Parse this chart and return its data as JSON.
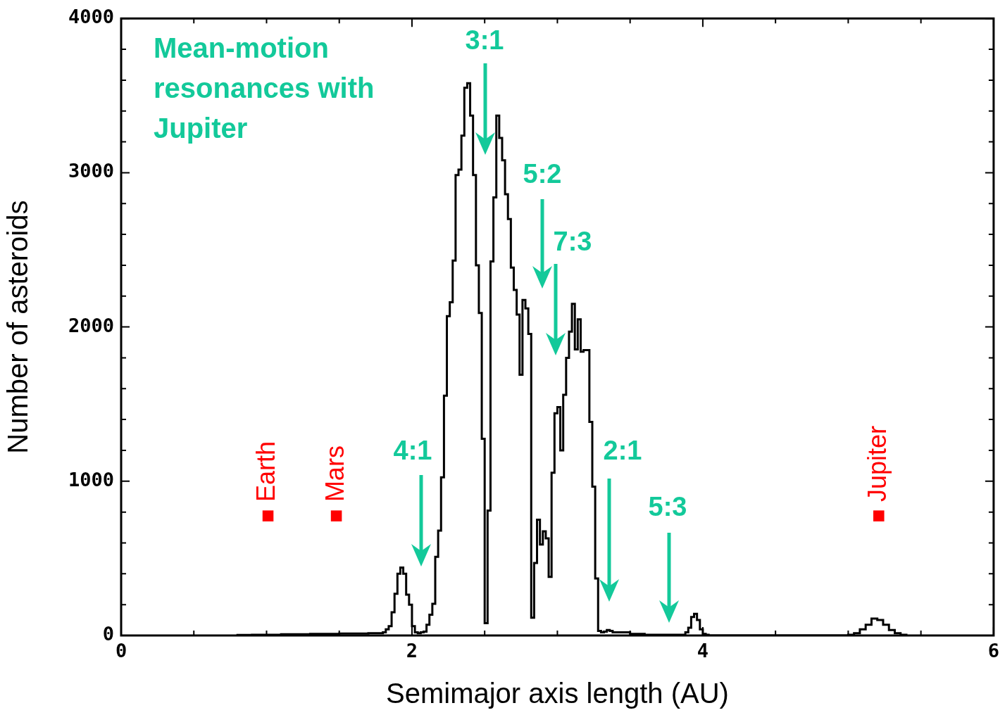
{
  "chart_data": {
    "type": "histogram",
    "xlabel": "Semimajor axis length (AU)",
    "ylabel": "Number of asteroids",
    "bins": [
      0.8,
      0.9,
      1.0,
      1.1,
      1.2,
      1.3,
      1.4,
      1.5,
      1.6,
      1.7,
      1.8,
      1.82,
      1.84,
      1.86,
      1.88,
      1.9,
      1.92,
      1.94,
      1.96,
      1.98,
      2.0,
      2.02,
      2.04,
      2.06,
      2.08,
      2.1,
      2.12,
      2.14,
      2.16,
      2.18,
      2.2,
      2.22,
      2.24,
      2.26,
      2.28,
      2.3,
      2.32,
      2.34,
      2.36,
      2.38,
      2.4,
      2.42,
      2.44,
      2.46,
      2.48,
      2.5,
      2.52,
      2.54,
      2.56,
      2.58,
      2.6,
      2.62,
      2.64,
      2.66,
      2.68,
      2.7,
      2.72,
      2.74,
      2.76,
      2.78,
      2.8,
      2.82,
      2.84,
      2.86,
      2.88,
      2.9,
      2.92,
      2.94,
      2.96,
      2.98,
      3.0,
      3.02,
      3.04,
      3.06,
      3.08,
      3.1,
      3.12,
      3.14,
      3.16,
      3.18,
      3.2,
      3.22,
      3.24,
      3.26,
      3.28,
      3.3,
      3.32,
      3.34,
      3.36,
      3.38,
      3.4,
      3.5,
      3.6,
      3.7,
      3.86,
      3.88,
      3.9,
      3.92,
      3.94,
      3.96,
      3.98,
      4.0,
      4.02,
      4.04,
      4.06,
      5.0,
      5.04,
      5.08,
      5.12,
      5.16,
      5.2,
      5.24,
      5.28,
      5.32,
      5.36,
      5.4
    ],
    "series": [
      {
        "color": "#000000",
        "values": [
          3,
          5,
          5,
          8,
          8,
          10,
          10,
          12,
          12,
          15,
          20,
          40,
          60,
          150,
          270,
          400,
          440,
          400,
          265,
          200,
          60,
          20,
          15,
          20,
          25,
          70,
          135,
          205,
          510,
          680,
          1025,
          1555,
          2070,
          2160,
          2430,
          2985,
          3020,
          3240,
          3550,
          3580,
          3370,
          2985,
          2400,
          2090,
          1275,
          80,
          810,
          2425,
          2840,
          3370,
          3225,
          3080,
          2860,
          2700,
          2385,
          2240,
          2080,
          1690,
          2175,
          2120,
          1955,
          115,
          470,
          750,
          590,
          675,
          630,
          380,
          1055,
          1440,
          1480,
          1200,
          1560,
          1800,
          1970,
          2150,
          1855,
          2050,
          1840,
          1850,
          1850,
          1385,
          965,
          370,
          30,
          20,
          25,
          35,
          30,
          20,
          20,
          10,
          5,
          5,
          5,
          20,
          50,
          120,
          140,
          100,
          40,
          10,
          5,
          0,
          0,
          5,
          15,
          40,
          70,
          110,
          100,
          70,
          35,
          15,
          5
        ]
      },
      {
        "type": "scatter",
        "color": "#ff0000",
        "marker": "square",
        "x": [
          1.01,
          1.48,
          5.21
        ],
        "values": [
          775,
          775,
          775
        ],
        "value_labels": [
          "Earth",
          "Mars",
          "Jupiter"
        ]
      }
    ],
    "xlim": [
      0,
      6
    ],
    "xticks": [
      0,
      {
        "value": 0.5,
        "label": null
      },
      {
        "value": 1,
        "label": null
      },
      {
        "value": 1.5,
        "label": null
      },
      2,
      {
        "value": 2.5,
        "label": null
      },
      {
        "value": 3,
        "label": null
      },
      {
        "value": 3.5,
        "label": null
      },
      4,
      {
        "value": 4.5,
        "label": null
      },
      {
        "value": 5,
        "label": null
      },
      {
        "value": 5.5,
        "label": null
      },
      6
    ],
    "ylim": [
      0,
      4000
    ],
    "yticks": [
      0,
      {
        "value": 200,
        "label": null
      },
      {
        "value": 400,
        "label": null
      },
      {
        "value": 600,
        "label": null
      },
      {
        "value": 800,
        "label": null
      },
      1000,
      {
        "value": 1200,
        "label": null
      },
      {
        "value": 1400,
        "label": null
      },
      {
        "value": 1600,
        "label": null
      },
      {
        "value": 1800,
        "label": null
      },
      2000,
      {
        "value": 2200,
        "label": null
      },
      {
        "value": 2400,
        "label": null
      },
      {
        "value": 2600,
        "label": null
      },
      {
        "value": 2800,
        "label": null
      },
      3000,
      {
        "value": 3200,
        "label": null
      },
      {
        "value": 3400,
        "label": null
      },
      {
        "value": 3600,
        "label": null
      },
      {
        "value": 3800,
        "label": null
      },
      4000
    ],
    "grid": false,
    "legend": false,
    "annotations": [
      "Mean-motion resonances with Jupiter",
      "3:1",
      "5:2",
      "7:3",
      "4:1",
      "2:1",
      "5:3"
    ]
  }
}
